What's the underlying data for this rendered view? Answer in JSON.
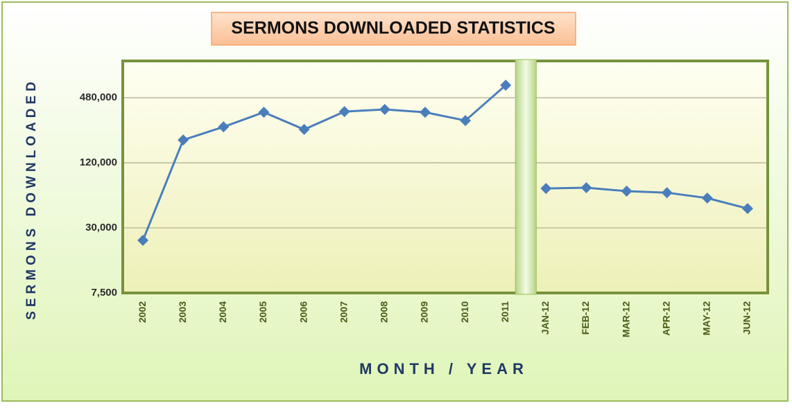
{
  "chart_data": {
    "type": "line",
    "title": "SERMONS DOWNLOADED STATISTICS",
    "x_label": "MONTH / YEAR",
    "y_label": "SERMONS DOWNLOADED",
    "categories": [
      "2002",
      "2003",
      "2004",
      "2005",
      "2006",
      "2007",
      "2008",
      "2009",
      "2010",
      "2011",
      "JAN-12",
      "FEB-12",
      "MAR-12",
      "APR-12",
      "MAY-12",
      "JUN-12"
    ],
    "series": [
      {
        "color": "#4a7ebb",
        "values": [
          23000,
          195000,
          258000,
          352000,
          244000,
          357000,
          374000,
          352000,
          295000,
          626000,
          null,
          null,
          null,
          null,
          null,
          null
        ]
      },
      {
        "color": "#4a7ebb",
        "values": [
          null,
          null,
          null,
          null,
          null,
          null,
          null,
          null,
          null,
          null,
          69500,
          70600,
          65600,
          63500,
          56600,
          45300
        ]
      }
    ],
    "log_y": true,
    "ylim": [
      7500,
      1050000
    ],
    "yticks": [
      {
        "value": 7500,
        "label": "7,500"
      },
      {
        "value": 30000,
        "label": "30,000"
      },
      {
        "value": 120000,
        "label": "120,000"
      },
      {
        "value": 480000,
        "label": "480,000"
      }
    ],
    "grid": true
  }
}
